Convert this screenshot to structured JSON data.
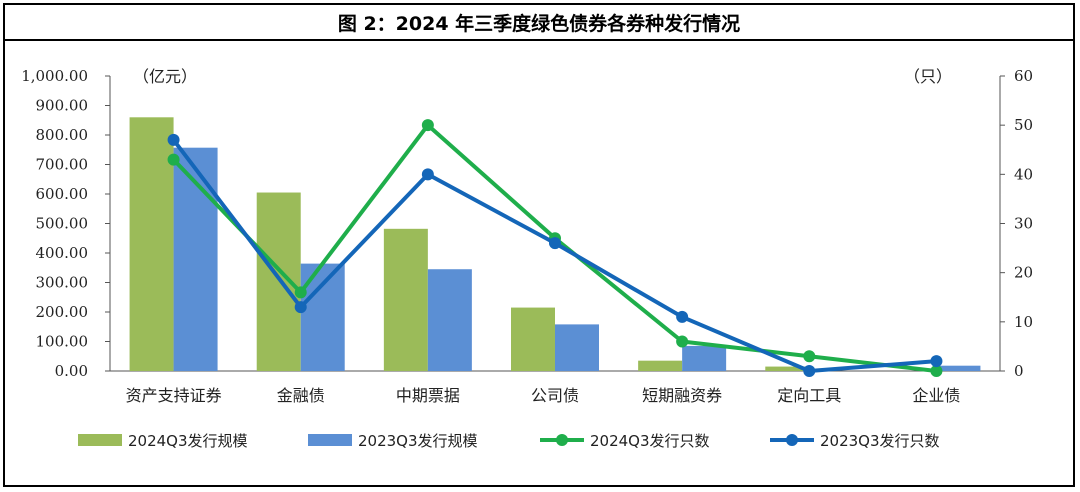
{
  "chart_data": {
    "type": "bar",
    "title": "图 2：2024 年三季度绿色债券各券种发行情况",
    "categories": [
      "资产支持证券",
      "金融债",
      "中期票据",
      "公司债",
      "短期融资券",
      "定向工具",
      "企业债"
    ],
    "left_axis": {
      "unit": "（亿元）",
      "ylim": [
        0,
        1000
      ],
      "ticks": [
        0,
        100,
        200,
        300,
        400,
        500,
        600,
        700,
        800,
        900,
        1000
      ],
      "tick_labels": [
        "0.00",
        "100.00",
        "200.00",
        "300.00",
        "400.00",
        "500.00",
        "600.00",
        "700.00",
        "800.00",
        "900.00",
        "1,000.00"
      ]
    },
    "right_axis": {
      "unit": "（只）",
      "ylim": [
        0,
        60
      ],
      "ticks": [
        0,
        10,
        20,
        30,
        40,
        50,
        60
      ],
      "tick_labels": [
        "0",
        "10",
        "20",
        "30",
        "40",
        "50",
        "60"
      ]
    },
    "bar_series": [
      {
        "name": "2024Q3发行规模",
        "color": "#9bbb59",
        "values": [
          860,
          605,
          482,
          215,
          35,
          15,
          0
        ]
      },
      {
        "name": "2023Q3发行规模",
        "color": "#5b8fd4",
        "values": [
          757,
          364,
          345,
          158,
          85,
          0,
          18
        ]
      }
    ],
    "line_series": [
      {
        "name": "2024Q3发行只数",
        "color": "#1fae4b",
        "values": [
          43,
          16,
          50,
          27,
          6,
          3,
          0
        ]
      },
      {
        "name": "2023Q3发行只数",
        "color": "#1466b8",
        "values": [
          47,
          13,
          40,
          26,
          11,
          0,
          2
        ]
      }
    ],
    "legend_position": "bottom"
  }
}
